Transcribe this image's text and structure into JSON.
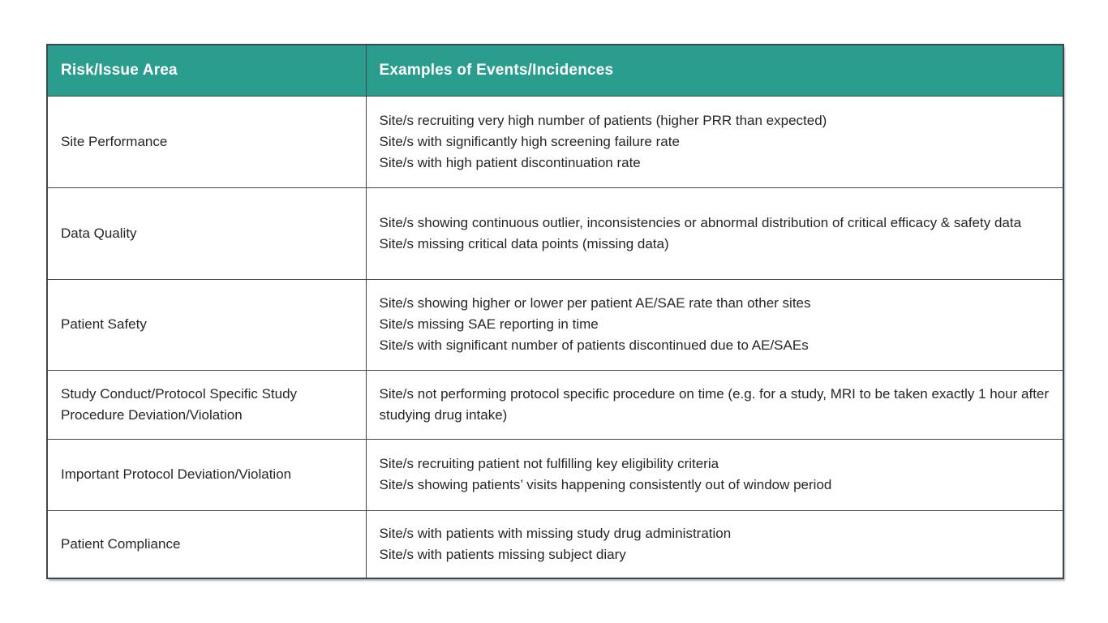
{
  "colors": {
    "header_bg": "#2a9d8f",
    "header_text": "#ffffff",
    "border": "#3d474e",
    "body_text": "#262626",
    "page_bg": "#ffffff"
  },
  "table": {
    "columns": [
      {
        "label": "Risk/Issue Area"
      },
      {
        "label": "Examples of Events/Incidences"
      }
    ],
    "rows": [
      {
        "area": "Site Performance",
        "examples": [
          "Site/s recruiting very high number of patients (higher PRR than expected)",
          "Site/s with significantly high screening failure rate",
          "Site/s with high patient discontinuation rate"
        ]
      },
      {
        "area": "Data Quality",
        "examples": [
          "Site/s showing continuous outlier, inconsistencies or abnormal distribution of critical efficacy & safety data",
          "Site/s missing critical data points (missing data)"
        ]
      },
      {
        "area": "Patient Safety",
        "examples": [
          "Site/s showing higher or lower per patient AE/SAE rate than other sites",
          "Site/s missing SAE reporting in time",
          "Site/s with significant number of patients discontinued due to AE/SAEs"
        ]
      },
      {
        "area": "Study Conduct/Protocol Specific Study Procedure Deviation/Violation",
        "examples": [
          "Site/s not performing protocol specific procedure on time (e.g. for a study, MRI to be taken exactly 1 hour after studying drug intake)"
        ]
      },
      {
        "area": "Important Protocol Deviation/Violation",
        "examples": [
          "Site/s recruiting patient not fulfilling key eligibility criteria",
          "Site/s showing patients’ visits happening consistently out of window period"
        ]
      },
      {
        "area": "Patient Compliance",
        "examples": [
          "Site/s with patients with missing study drug administration",
          "Site/s with patients missing subject diary"
        ]
      }
    ]
  }
}
